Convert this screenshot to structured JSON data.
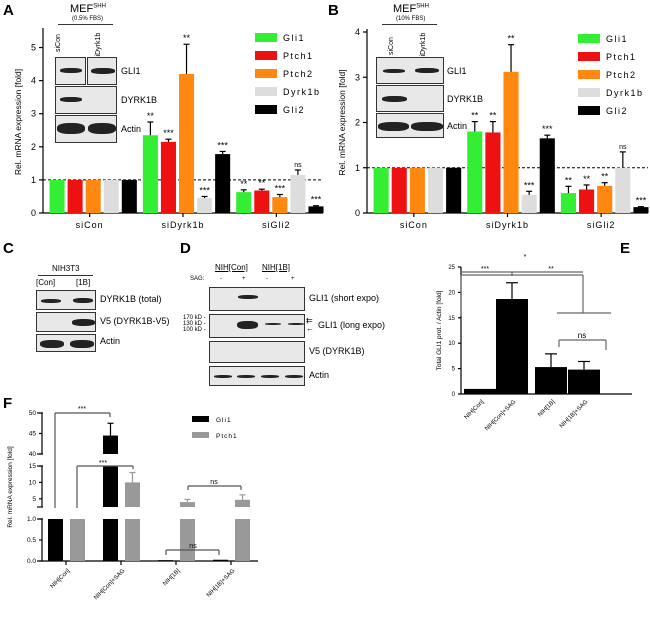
{
  "panels": {
    "a": "A",
    "b": "B",
    "c": "C",
    "d": "D",
    "e": "E",
    "f": "F"
  },
  "inset_a": {
    "title": "MEF",
    "sup": "SHH",
    "cond": "(0.5% FBS)",
    "lanes": [
      "siCon",
      "siDyrk1b"
    ],
    "rows": [
      "GLI1",
      "DYRK1B",
      "Actin"
    ]
  },
  "inset_b": {
    "title": "MEF",
    "sup": "SHH",
    "cond": "(10% FBS)",
    "lanes": [
      "siCon",
      "siDyrk1b"
    ],
    "rows": [
      "GLI1",
      "DYRK1B",
      "Actin"
    ]
  },
  "blot_c": {
    "title": "NIH3T3",
    "lanes": [
      "[Con]",
      "[1B]"
    ],
    "rows": [
      "DYRK1B (total)",
      "V5 (DYRK1B-V5)",
      "Actin"
    ]
  },
  "blot_d": {
    "groups": [
      "NIH[Con]",
      "NIH[1B]"
    ],
    "sag_label": "SAG:",
    "sag": [
      "-",
      "+",
      "-",
      "+"
    ],
    "rows": [
      "GLI1 (short expo)",
      "GLI1 (long expo)",
      "V5 (DYRK1B)",
      "Actin"
    ],
    "markers": [
      "170 kD -",
      "130 kD -",
      "100 kD -"
    ]
  },
  "colors": {
    "Gli1": "#33ee33",
    "Ptch1": "#ee1111",
    "Ptch2": "#ff8811",
    "Dyrk1b": "#dddddd",
    "Gli2": "#000000",
    "gray": "#999999"
  },
  "chart_data": [
    {
      "id": "A",
      "type": "bar",
      "ylabel": "Rel. mRNA expression [fold]",
      "ylim": [
        0,
        5.5
      ],
      "yticks": [
        0,
        1,
        2,
        3,
        4,
        5
      ],
      "categories": [
        "siCon",
        "siDyrk1b",
        "siGli2"
      ],
      "reference_line": 1,
      "legend": "top-right",
      "series": [
        {
          "name": "Gli1",
          "values": [
            1,
            2.35,
            0.63
          ],
          "err": [
            0,
            0.4,
            0.07
          ],
          "sig": [
            "",
            "**",
            "**"
          ]
        },
        {
          "name": "Ptch1",
          "values": [
            1,
            2.15,
            0.68
          ],
          "err": [
            0,
            0.08,
            0.04
          ],
          "sig": [
            "",
            "***",
            "**"
          ]
        },
        {
          "name": "Ptch2",
          "values": [
            1,
            4.2,
            0.48
          ],
          "err": [
            0,
            0.9,
            0.08
          ],
          "sig": [
            "",
            "**",
            "***"
          ]
        },
        {
          "name": "Dyrk1b",
          "values": [
            1,
            0.45,
            1.15
          ],
          "err": [
            0,
            0.05,
            0.15
          ],
          "sig": [
            "",
            "***",
            "ns"
          ]
        },
        {
          "name": "Gli2",
          "values": [
            1,
            1.78,
            0.2
          ],
          "err": [
            0,
            0.08,
            0.02
          ],
          "sig": [
            "",
            "***",
            "***"
          ]
        }
      ]
    },
    {
      "id": "B",
      "type": "bar",
      "ylabel": "Rel. mRNA expression [fold]",
      "ylim": [
        0,
        4
      ],
      "yticks": [
        0,
        1,
        2,
        3,
        4
      ],
      "categories": [
        "siCon",
        "siDyrk1b",
        "siGli2"
      ],
      "reference_line": 1,
      "legend": "top-right",
      "series": [
        {
          "name": "Gli1",
          "values": [
            1,
            1.8,
            0.44
          ],
          "err": [
            0,
            0.22,
            0.15
          ],
          "sig": [
            "",
            "**",
            "**"
          ]
        },
        {
          "name": "Ptch1",
          "values": [
            1,
            1.78,
            0.52
          ],
          "err": [
            0,
            0.24,
            0.1
          ],
          "sig": [
            "",
            "**",
            "**"
          ]
        },
        {
          "name": "Ptch2",
          "values": [
            1,
            3.12,
            0.6
          ],
          "err": [
            0,
            0.6,
            0.07
          ],
          "sig": [
            "",
            "**",
            "**"
          ]
        },
        {
          "name": "Dyrk1b",
          "values": [
            1,
            0.4,
            1.0
          ],
          "err": [
            0,
            0.08,
            0.35
          ],
          "sig": [
            "",
            "***",
            "ns"
          ]
        },
        {
          "name": "Gli2",
          "values": [
            1,
            1.65,
            0.13
          ],
          "err": [
            0,
            0.07,
            0.01
          ],
          "sig": [
            "",
            "***",
            "***"
          ]
        }
      ]
    },
    {
      "id": "E",
      "type": "bar",
      "ylabel": "Total GLI1 prot. / Actin [fold]",
      "ylim": [
        0,
        25
      ],
      "yticks": [
        0,
        5,
        10,
        15,
        20,
        25
      ],
      "categories": [
        "NIH[Con]",
        "NIH[Con]+SAG",
        "NIH[1B]",
        "NIH[1B]+SAG"
      ],
      "values": [
        1,
        18.7,
        5.3,
        4.8
      ],
      "err": [
        0,
        3.2,
        2.6,
        1.6
      ],
      "brackets": [
        "***",
        "**",
        "*",
        "ns"
      ]
    },
    {
      "id": "F",
      "type": "bar",
      "ylabel": "Rel. mRNA expression [fold]",
      "axis_segments": [
        [
          0,
          1
        ],
        [
          2.5,
          15
        ],
        [
          40,
          50
        ]
      ],
      "yticks": [
        "0.0",
        "0.5",
        "1.0",
        "5",
        "10",
        "15",
        "40",
        "45",
        "50"
      ],
      "categories": [
        "NIH[Con]",
        "NIH[Con]+SAG",
        "NIH[1B]",
        "NIH[1B]+SAG"
      ],
      "legend": "top-right",
      "series": [
        {
          "name": "Gli1",
          "values": [
            1,
            44.5,
            0.02,
            0.03
          ],
          "err": [
            0,
            3,
            0,
            0
          ]
        },
        {
          "name": "Ptch1",
          "values": [
            1,
            10,
            4,
            4.7
          ],
          "err": [
            0,
            3,
            0.8,
            1.5
          ]
        }
      ],
      "brackets": [
        "***",
        "***",
        "ns",
        "ns"
      ]
    }
  ]
}
